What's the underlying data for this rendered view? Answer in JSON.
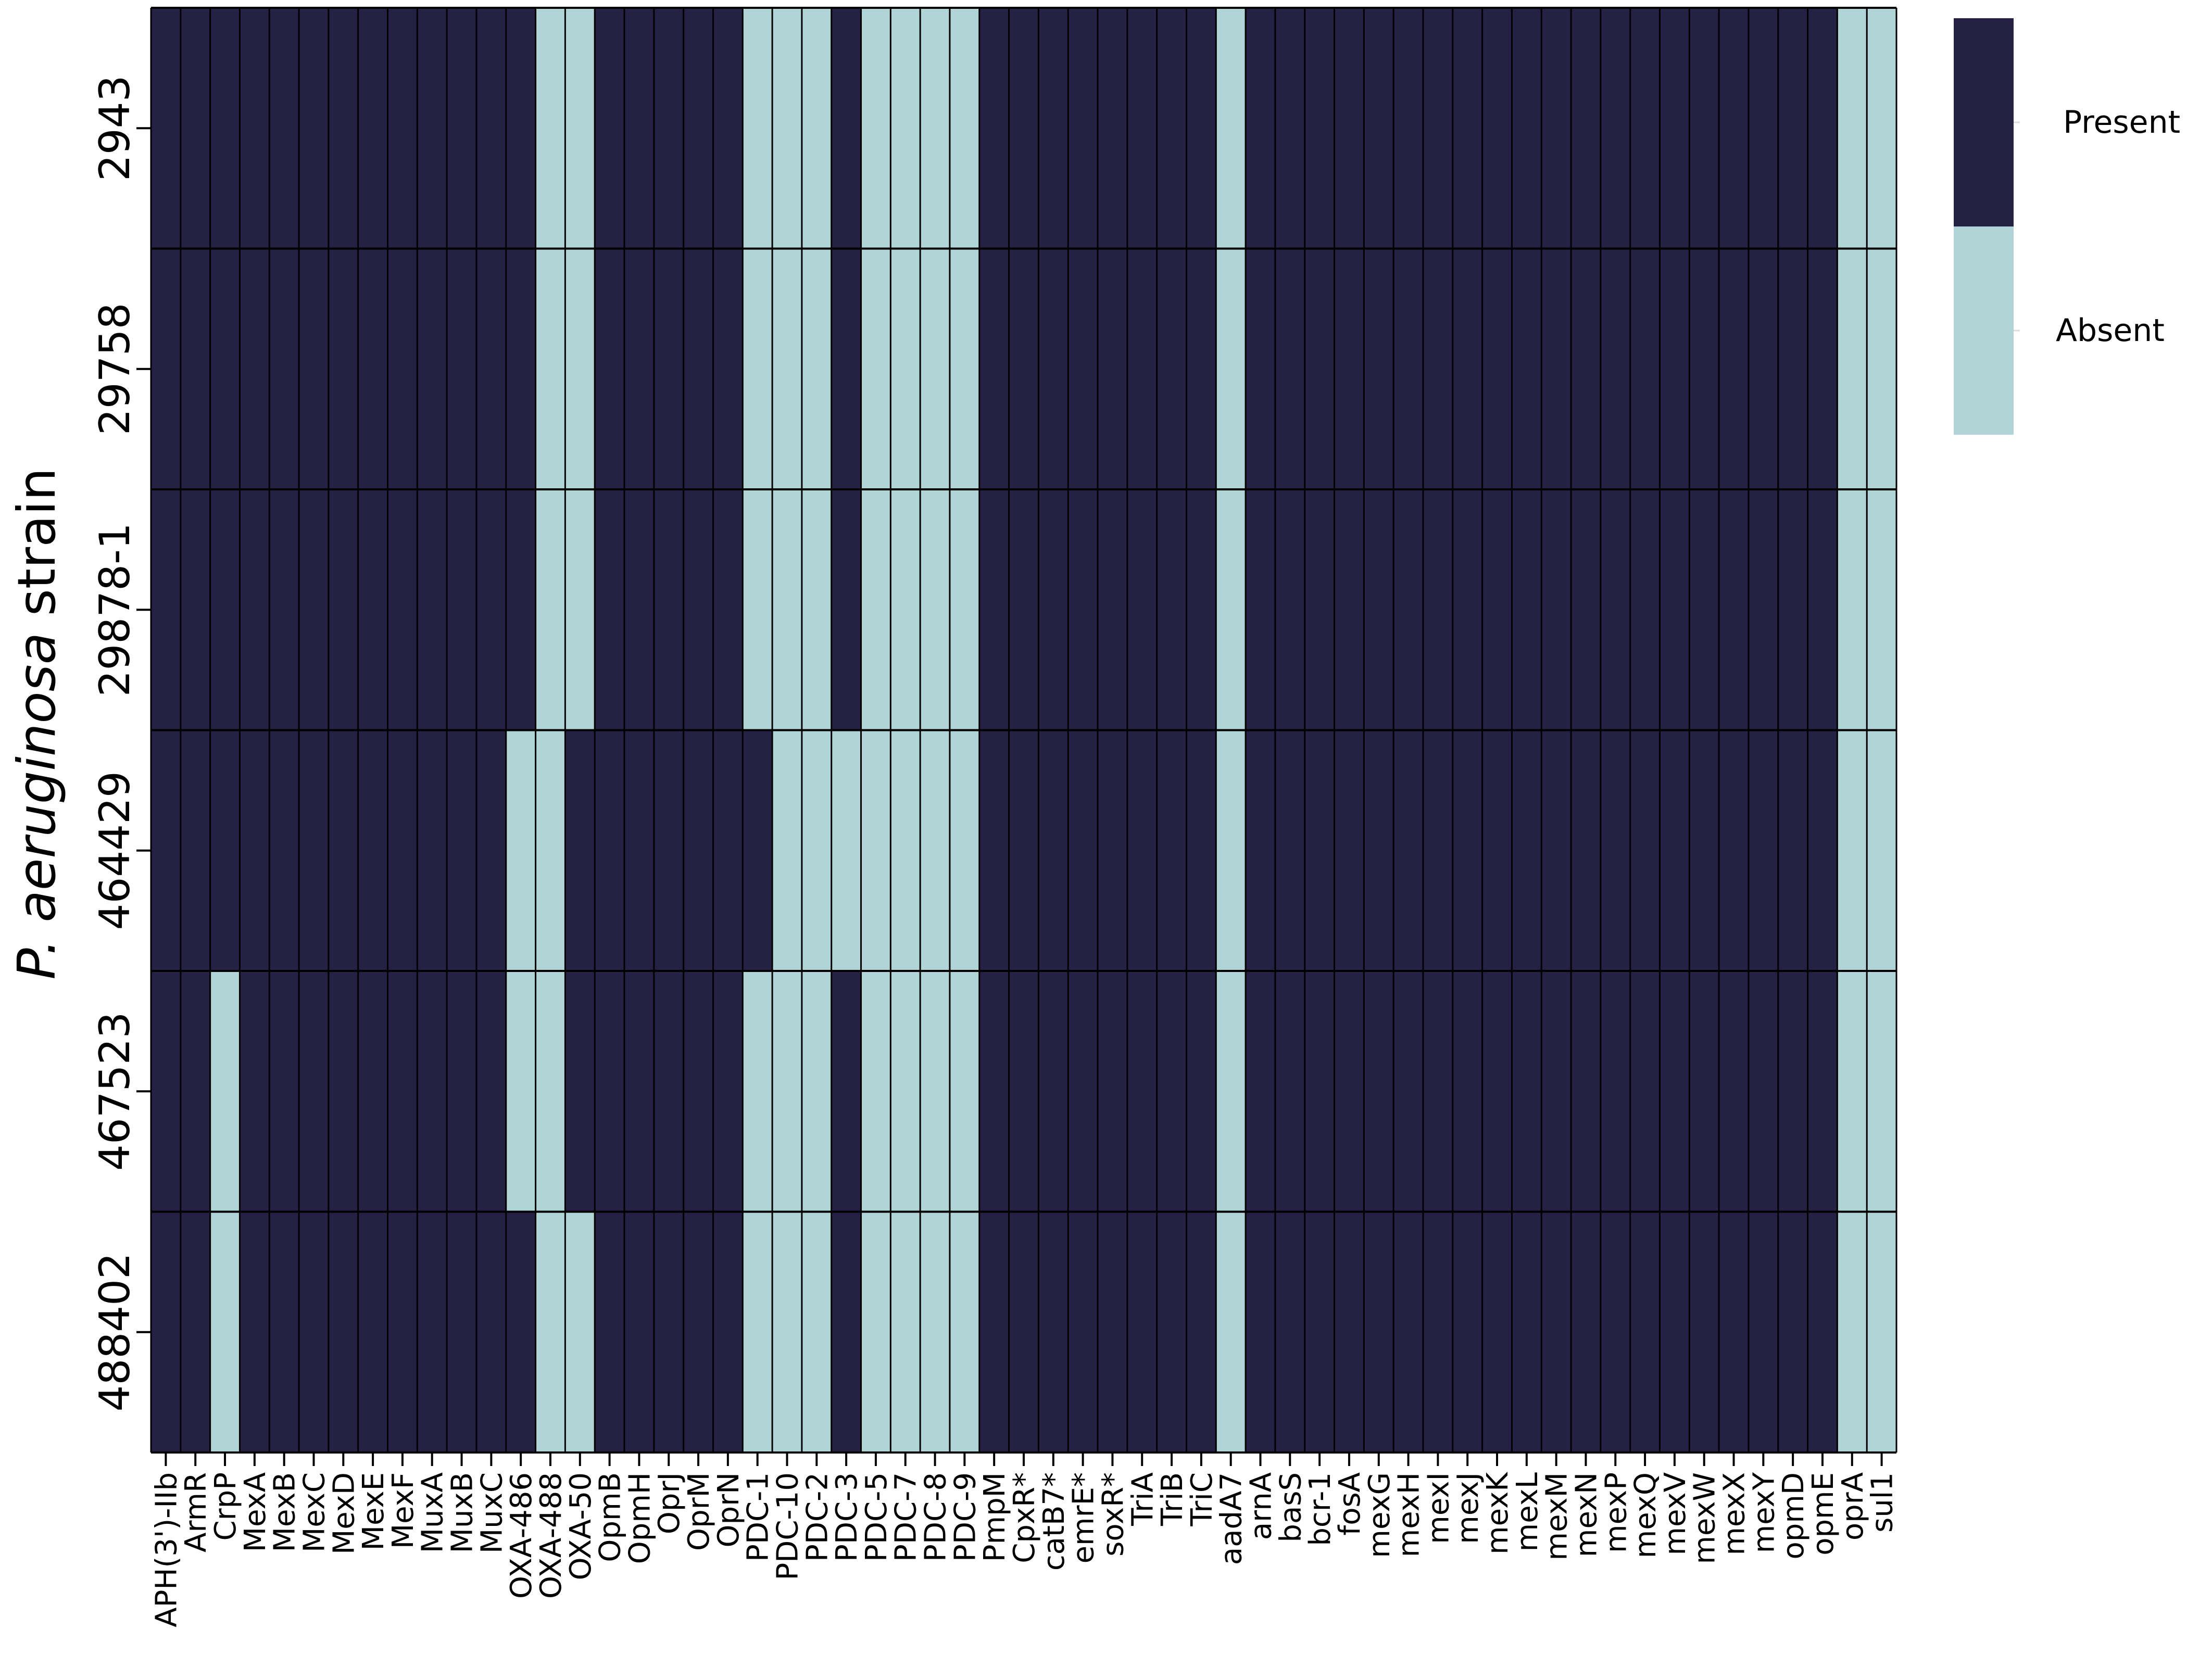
{
  "chart_data": {
    "type": "heatmap",
    "ylabel_italic": "P. aeruginosa",
    "ylabel_rest": " strain",
    "rows": [
      "2943",
      "29758",
      "29878-1",
      "464429",
      "467523",
      "488402"
    ],
    "columns": [
      "APH(3')-IIb",
      "ArmR",
      "CrpP",
      "MexA",
      "MexB",
      "MexC",
      "MexD",
      "MexE",
      "MexF",
      "MuxA",
      "MuxB",
      "MuxC",
      "OXA-486",
      "OXA-488",
      "OXA-50",
      "OpmB",
      "OpmH",
      "OprJ",
      "OprM",
      "OprN",
      "PDC-1",
      "PDC-10",
      "PDC-2",
      "PDC-3",
      "PDC-5",
      "PDC-7",
      "PDC-8",
      "PDC-9",
      "PmpM",
      "CpxR*",
      "catB7*",
      "emrE*",
      "soxR*",
      "TriA",
      "TriB",
      "TriC",
      "aadA7",
      "arnA",
      "basS",
      "bcr-1",
      "fosA",
      "mexG",
      "mexH",
      "mexI",
      "mexJ",
      "mexK",
      "mexL",
      "mexM",
      "mexN",
      "mexP",
      "mexQ",
      "mexV",
      "mexW",
      "mexX",
      "mexY",
      "opmD",
      "opmE",
      "oprA",
      "sul1"
    ],
    "values": [
      [
        1,
        1,
        1,
        1,
        1,
        1,
        1,
        1,
        1,
        1,
        1,
        1,
        1,
        0,
        0,
        1,
        1,
        1,
        1,
        1,
        0,
        0,
        0,
        1,
        0,
        0,
        0,
        0,
        1,
        1,
        1,
        1,
        1,
        1,
        1,
        1,
        0,
        1,
        1,
        1,
        1,
        1,
        1,
        1,
        1,
        1,
        1,
        1,
        1,
        1,
        1,
        1,
        1,
        1,
        1,
        1,
        1,
        0,
        0
      ],
      [
        1,
        1,
        1,
        1,
        1,
        1,
        1,
        1,
        1,
        1,
        1,
        1,
        1,
        0,
        0,
        1,
        1,
        1,
        1,
        1,
        0,
        0,
        0,
        1,
        0,
        0,
        0,
        0,
        1,
        1,
        1,
        1,
        1,
        1,
        1,
        1,
        0,
        1,
        1,
        1,
        1,
        1,
        1,
        1,
        1,
        1,
        1,
        1,
        1,
        1,
        1,
        1,
        1,
        1,
        1,
        1,
        1,
        0,
        0
      ],
      [
        1,
        1,
        1,
        1,
        1,
        1,
        1,
        1,
        1,
        1,
        1,
        1,
        1,
        0,
        0,
        1,
        1,
        1,
        1,
        1,
        0,
        0,
        0,
        1,
        0,
        0,
        0,
        0,
        1,
        1,
        1,
        1,
        1,
        1,
        1,
        1,
        0,
        1,
        1,
        1,
        1,
        1,
        1,
        1,
        1,
        1,
        1,
        1,
        1,
        1,
        1,
        1,
        1,
        1,
        1,
        1,
        1,
        0,
        0
      ],
      [
        1,
        1,
        1,
        1,
        1,
        1,
        1,
        1,
        1,
        1,
        1,
        1,
        0,
        0,
        1,
        1,
        1,
        1,
        1,
        1,
        1,
        0,
        0,
        0,
        0,
        0,
        0,
        0,
        1,
        1,
        1,
        1,
        1,
        1,
        1,
        1,
        0,
        1,
        1,
        1,
        1,
        1,
        1,
        1,
        1,
        1,
        1,
        1,
        1,
        1,
        1,
        1,
        1,
        1,
        1,
        1,
        1,
        0,
        0
      ],
      [
        1,
        1,
        0,
        1,
        1,
        1,
        1,
        1,
        1,
        1,
        1,
        1,
        0,
        0,
        1,
        1,
        1,
        1,
        1,
        1,
        0,
        0,
        0,
        1,
        0,
        0,
        0,
        0,
        1,
        1,
        1,
        1,
        1,
        1,
        1,
        1,
        0,
        1,
        1,
        1,
        1,
        1,
        1,
        1,
        1,
        1,
        1,
        1,
        1,
        1,
        1,
        1,
        1,
        1,
        1,
        1,
        1,
        0,
        0
      ],
      [
        1,
        1,
        0,
        1,
        1,
        1,
        1,
        1,
        1,
        1,
        1,
        1,
        1,
        0,
        0,
        1,
        1,
        1,
        1,
        1,
        0,
        0,
        0,
        1,
        0,
        0,
        0,
        0,
        1,
        1,
        1,
        1,
        1,
        1,
        1,
        1,
        0,
        1,
        1,
        1,
        1,
        1,
        1,
        1,
        1,
        1,
        1,
        1,
        1,
        1,
        1,
        1,
        1,
        1,
        1,
        1,
        1,
        0,
        0
      ]
    ],
    "legend": [
      {
        "label": "Present",
        "value": 1,
        "color": "#252145"
      },
      {
        "label": "Absent",
        "value": 0,
        "color": "#b1d5d7"
      }
    ],
    "legend_position": "right",
    "grid": true
  }
}
